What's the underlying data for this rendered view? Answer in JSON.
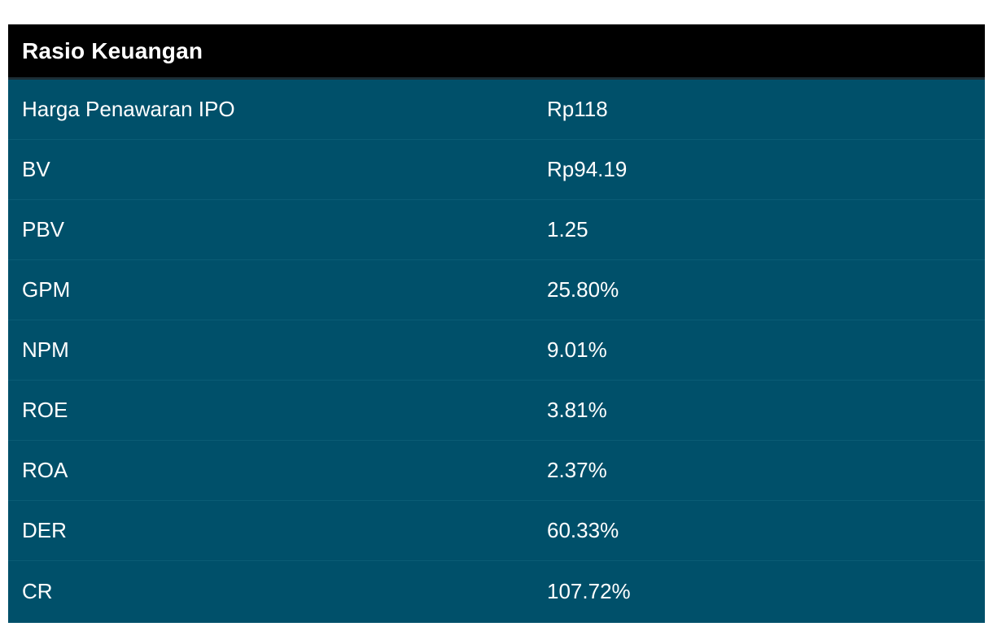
{
  "table": {
    "title": "Rasio Keuangan",
    "rows": [
      {
        "label": "Harga Penawaran IPO",
        "value": "Rp118"
      },
      {
        "label": "BV",
        "value": "Rp94.19"
      },
      {
        "label": "PBV",
        "value": "1.25"
      },
      {
        "label": "GPM",
        "value": "25.80%"
      },
      {
        "label": "NPM",
        "value": "9.01%"
      },
      {
        "label": "ROE",
        "value": "3.81%"
      },
      {
        "label": "ROA",
        "value": "2.37%"
      },
      {
        "label": "DER",
        "value": "60.33%"
      },
      {
        "label": "CR",
        "value": "107.72%"
      }
    ]
  },
  "colors": {
    "header_bg": "#000000",
    "body_bg": "#00506a",
    "text": "#ffffff"
  }
}
